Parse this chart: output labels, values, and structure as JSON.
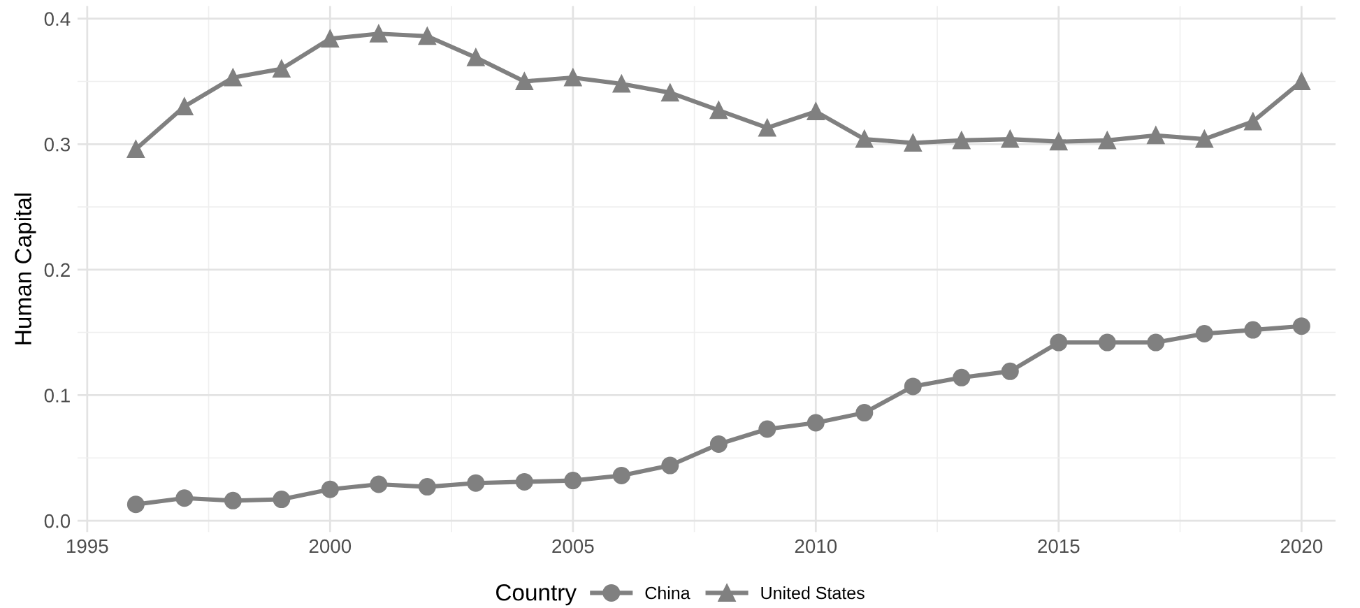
{
  "chart_data": {
    "type": "line",
    "ylabel": "Human Capital",
    "legend_title": "Country",
    "x": [
      1996,
      1997,
      1998,
      1999,
      2000,
      2001,
      2002,
      2003,
      2004,
      2005,
      2006,
      2007,
      2008,
      2009,
      2010,
      2011,
      2012,
      2013,
      2014,
      2015,
      2016,
      2017,
      2018,
      2019,
      2020
    ],
    "series": [
      {
        "name": "China",
        "color": "#808080",
        "marker": "circle",
        "values": [
          0.013,
          0.018,
          0.016,
          0.017,
          0.025,
          0.029,
          0.027,
          0.03,
          0.031,
          0.032,
          0.036,
          0.044,
          0.061,
          0.073,
          0.078,
          0.086,
          0.107,
          0.114,
          0.119,
          0.142,
          0.142,
          0.142,
          0.149,
          0.152,
          0.155
        ]
      },
      {
        "name": "United States",
        "color": "#808080",
        "marker": "triangle",
        "values": [
          0.296,
          0.33,
          0.353,
          0.36,
          0.384,
          0.388,
          0.386,
          0.369,
          0.35,
          0.353,
          0.348,
          0.341,
          0.327,
          0.313,
          0.326,
          0.304,
          0.301,
          0.303,
          0.304,
          0.302,
          0.303,
          0.307,
          0.304,
          0.318,
          0.35
        ]
      }
    ],
    "xlim": [
      1994.8,
      2020.7
    ],
    "xticks": [
      1995,
      2000,
      2005,
      2010,
      2015,
      2020
    ],
    "ylim": [
      -0.009,
      0.41
    ],
    "yticks": [
      {
        "value": 0,
        "label": "0.0"
      },
      0.1,
      0.2,
      0.3,
      0.4
    ],
    "grid": true,
    "legend": "bottom",
    "line_style": "solid"
  }
}
